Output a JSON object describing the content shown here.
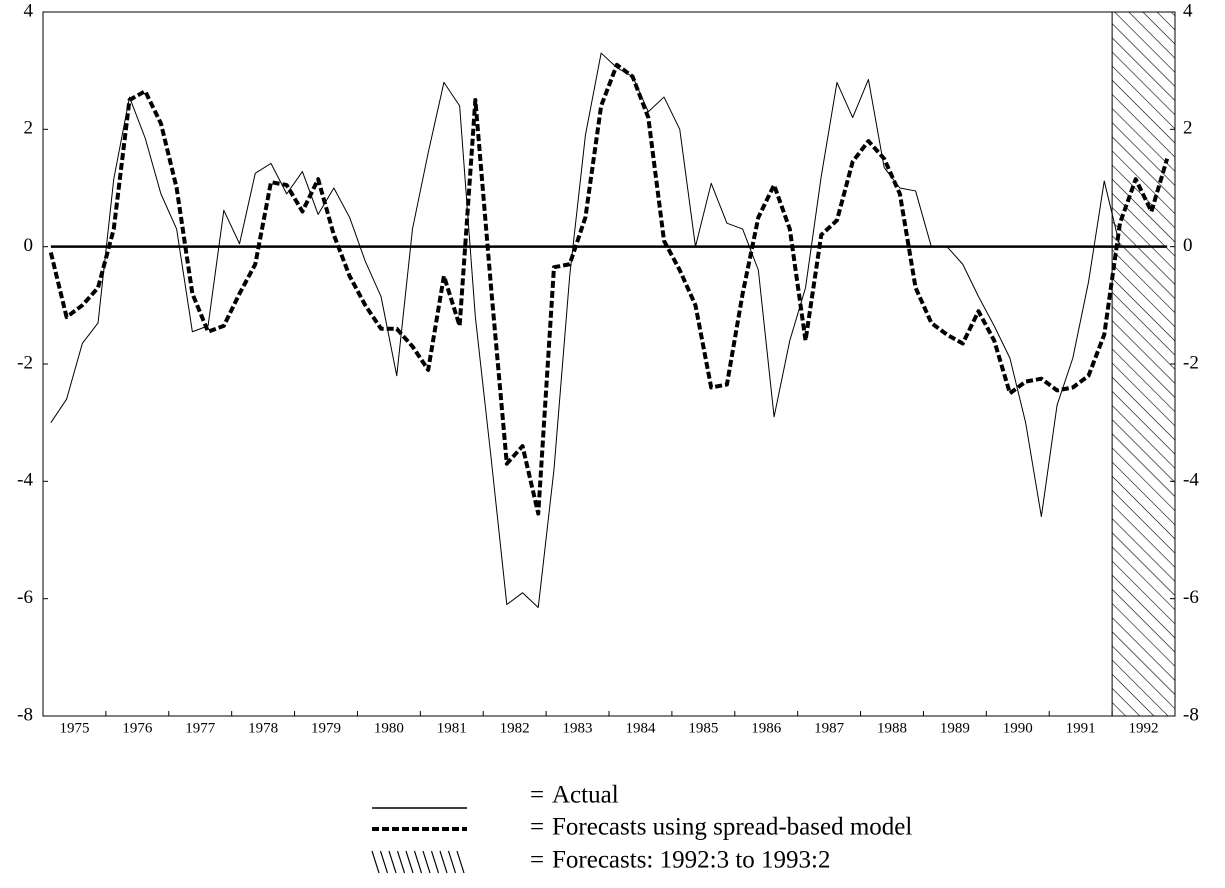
{
  "chart_data": {
    "type": "line",
    "x": [
      1975.125,
      1975.375,
      1975.625,
      1975.875,
      1976.125,
      1976.375,
      1976.625,
      1976.875,
      1977.125,
      1977.375,
      1977.625,
      1977.875,
      1978.125,
      1978.375,
      1978.625,
      1978.875,
      1979.125,
      1979.375,
      1979.625,
      1979.875,
      1980.125,
      1980.375,
      1980.625,
      1980.875,
      1981.125,
      1981.375,
      1981.625,
      1981.875,
      1982.125,
      1982.375,
      1982.625,
      1982.875,
      1983.125,
      1983.375,
      1983.625,
      1983.875,
      1984.125,
      1984.375,
      1984.625,
      1984.875,
      1985.125,
      1985.375,
      1985.625,
      1985.875,
      1986.125,
      1986.375,
      1986.625,
      1986.875,
      1987.125,
      1987.375,
      1987.625,
      1987.875,
      1988.125,
      1988.375,
      1988.625,
      1988.875,
      1989.125,
      1989.375,
      1989.625,
      1989.875,
      1990.125,
      1990.375,
      1990.625,
      1990.875,
      1991.125,
      1991.375,
      1991.625,
      1991.875,
      1992.125,
      1992.375,
      1992.625,
      1992.875
    ],
    "series": [
      {
        "name": "Actual",
        "color": "#000000",
        "style": "solid",
        "values": [
          -3.0,
          -2.6,
          -1.65,
          -1.3,
          1.15,
          2.55,
          1.85,
          0.9,
          0.3,
          -1.45,
          -1.35,
          0.62,
          0.05,
          1.25,
          1.42,
          0.9,
          1.28,
          0.55,
          1.0,
          0.5,
          -0.25,
          -0.85,
          -2.2,
          0.3,
          1.6,
          2.8,
          2.4,
          -1.2,
          -3.6,
          -6.1,
          -5.9,
          -6.15,
          -3.8,
          -0.5,
          1.9,
          3.3,
          3.05,
          2.9,
          2.3,
          2.55,
          2.0,
          0.0,
          1.08,
          0.4,
          0.3,
          -0.4,
          -2.9,
          -1.6,
          -0.7,
          1.2,
          2.8,
          2.2,
          2.85,
          1.35,
          1.0,
          0.95,
          0.0,
          0.0,
          -0.3,
          -0.85,
          -1.35,
          -1.9,
          -3.0,
          -4.6,
          -2.7,
          -1.9,
          -0.6,
          1.12,
          0.0,
          null,
          null,
          null
        ]
      },
      {
        "name": "Forecasts using spread-based model",
        "color": "#000000",
        "style": "dashed",
        "values": [
          -0.1,
          -1.2,
          -1.0,
          -0.7,
          0.3,
          2.5,
          2.65,
          2.1,
          1.0,
          -0.8,
          -1.45,
          -1.35,
          -0.8,
          -0.3,
          1.1,
          1.05,
          0.6,
          1.15,
          0.2,
          -0.5,
          -1.0,
          -1.4,
          -1.4,
          -1.7,
          -2.1,
          -0.5,
          -1.35,
          2.5,
          -0.7,
          -3.7,
          -3.4,
          -4.55,
          -0.35,
          -0.3,
          0.5,
          2.4,
          3.1,
          2.9,
          2.2,
          0.1,
          -0.4,
          -1.0,
          -2.4,
          -2.35,
          -0.8,
          0.5,
          1.05,
          0.3,
          -1.6,
          0.2,
          0.45,
          1.45,
          1.8,
          1.5,
          0.9,
          -0.7,
          -1.3,
          -1.5,
          -1.65,
          -1.1,
          -1.6,
          -2.5,
          -2.3,
          -2.25,
          -2.45,
          -2.4,
          -2.2,
          -1.5,
          0.4,
          1.15,
          0.6,
          1.5
        ]
      }
    ],
    "shaded_region": {
      "name": "Forecasts: 1992:3 to 1993:2",
      "xlim": [
        1992,
        1993
      ]
    },
    "legend_prefix": "=",
    "reference_line": 0,
    "xlim": [
      1975,
      1993
    ],
    "xticks": [
      1975,
      1976,
      1977,
      1978,
      1979,
      1980,
      1981,
      1982,
      1983,
      1984,
      1985,
      1986,
      1987,
      1988,
      1989,
      1990,
      1991,
      1992
    ],
    "ylim": [
      -8,
      4
    ],
    "yticks": [
      -8,
      -6,
      -4,
      -2,
      0,
      2,
      4
    ],
    "y2lim": [
      -8,
      4
    ],
    "y2ticks": [
      -8,
      -6,
      -4,
      -2,
      0,
      2,
      4
    ]
  }
}
